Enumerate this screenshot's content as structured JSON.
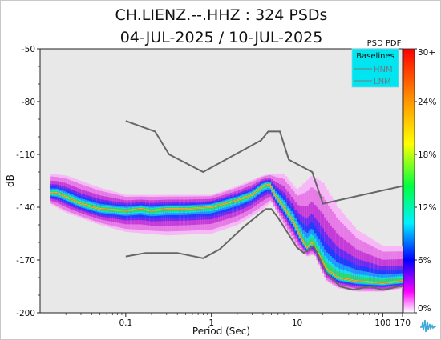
{
  "chart_data": {
    "type": "heatmap",
    "title_line1": "CH.LIENZ.--.HHZ : 324 PSDs",
    "title_line2": "04-JUL-2025 / 10-JUL-2025",
    "xlabel": "Period (Sec)",
    "ylabel": "dB",
    "xscale": "log",
    "xlim": [
      0.01,
      170
    ],
    "ylim": [
      -200,
      -50
    ],
    "x_ticks": [
      {
        "value": 0.1,
        "label": "0.1"
      },
      {
        "value": 1,
        "label": "1"
      },
      {
        "value": 10,
        "label": "10"
      },
      {
        "value": 100,
        "label": "100"
      },
      {
        "value": 170,
        "label": "170"
      }
    ],
    "y_ticks": [
      {
        "value": -50,
        "label": "-50"
      },
      {
        "value": -80,
        "label": "-80"
      },
      {
        "value": -110,
        "label": "-110"
      },
      {
        "value": -140,
        "label": "-140"
      },
      {
        "value": -170,
        "label": "-170"
      },
      {
        "value": -200,
        "label": "-200"
      }
    ],
    "colorbar": {
      "title": "PSD PDF",
      "ticks": [
        "30+",
        "24%",
        "18%",
        "12%",
        "6%",
        "0%"
      ],
      "stops": [
        "#ff0000",
        "#ff8000",
        "#ffff00",
        "#00ff00",
        "#00ffff",
        "#0000ff",
        "#ff00ff",
        "#ffffff"
      ]
    },
    "legend": {
      "title": "Baselines",
      "placement": "top-right",
      "background": "#00e5f0",
      "entries": [
        "HNM",
        "LNM"
      ]
    },
    "baselines": {
      "color": "#666666",
      "HNM": {
        "x": [
          0.1,
          0.22,
          0.32,
          0.8,
          3.8,
          4.6,
          6.3,
          8,
          15,
          20,
          170
        ],
        "y": [
          -91,
          -97,
          -110,
          -120,
          -102,
          -97,
          -97,
          -113,
          -120,
          -138,
          -128
        ]
      },
      "LNM": {
        "x": [
          0.1,
          0.17,
          0.4,
          0.8,
          1.24,
          2.4,
          4.3,
          5,
          6,
          10,
          12,
          15.6,
          21.9,
          31.6,
          45,
          70,
          101,
          154,
          170
        ],
        "y": [
          -168,
          -166,
          -166,
          -169,
          -164,
          -151,
          -141,
          -141,
          -146,
          -163,
          -166,
          -162,
          -177,
          -185,
          -187,
          -185,
          -187,
          -185,
          -185
        ]
      }
    },
    "pdf_mode": {
      "x": [
        0.01,
        0.013,
        0.016,
        0.02,
        0.03,
        0.05,
        0.1,
        0.15,
        0.2,
        0.3,
        0.5,
        1,
        2,
        3,
        4,
        4.8,
        5.5,
        7,
        9,
        11,
        13,
        15,
        18,
        22,
        30,
        50,
        100,
        170
      ],
      "y": [
        -148,
        -132,
        -132,
        -134,
        -138,
        -141,
        -142,
        -141,
        -142,
        -141,
        -141,
        -140,
        -136,
        -133,
        -128,
        -127,
        -133,
        -140,
        -148,
        -157,
        -163,
        -160,
        -167,
        -175,
        -180,
        -182,
        -183,
        -182
      ]
    },
    "pdf_min": {
      "x": [
        0.013,
        0.02,
        0.05,
        0.1,
        0.3,
        1,
        2,
        4,
        5,
        7,
        10,
        13,
        16,
        22,
        30,
        50,
        100,
        170
      ],
      "y": [
        -138,
        -143,
        -150,
        -154,
        -156,
        -155,
        -150,
        -141,
        -137,
        -150,
        -163,
        -168,
        -167,
        -182,
        -186,
        -188,
        -188,
        -186
      ]
    },
    "pdf_max": {
      "x": [
        0.013,
        0.02,
        0.05,
        0.1,
        0.3,
        1,
        2,
        4,
        5,
        7,
        10,
        15,
        20,
        30,
        50,
        100,
        170
      ],
      "y": [
        -121,
        -122,
        -129,
        -133,
        -133,
        -133,
        -128,
        -122,
        -121,
        -121,
        -130,
        -122,
        -126,
        -140,
        -153,
        -162,
        -162
      ]
    }
  }
}
